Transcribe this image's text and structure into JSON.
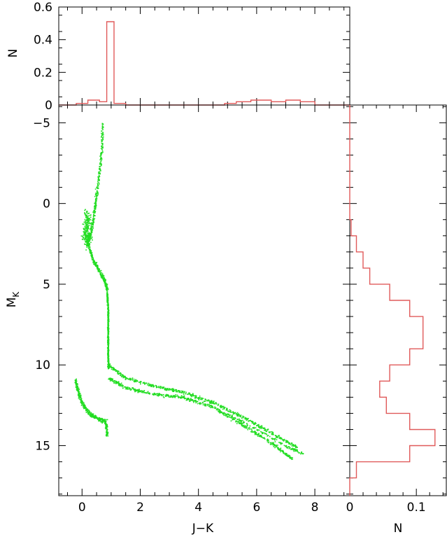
{
  "chart_data": [
    {
      "id": "top-histogram",
      "type": "histogram",
      "xlim": [
        -0.8,
        9.2
      ],
      "ylim": [
        0,
        0.6
      ],
      "ylabel": "N",
      "y_ticks": [
        0,
        0.2,
        0.4,
        0.6
      ],
      "y_tick_labels": [
        "0",
        "0.2",
        "0.4",
        "0.6"
      ],
      "line_color": "#e05a5a",
      "bins": [
        {
          "x0": -0.8,
          "x1": -0.2,
          "y": 0.0
        },
        {
          "x0": -0.2,
          "x1": 0.2,
          "y": 0.01
        },
        {
          "x0": 0.2,
          "x1": 0.6,
          "y": 0.03
        },
        {
          "x0": 0.6,
          "x1": 0.85,
          "y": 0.02
        },
        {
          "x0": 0.85,
          "x1": 1.1,
          "y": 0.51
        },
        {
          "x0": 1.1,
          "x1": 1.5,
          "y": 0.01
        },
        {
          "x0": 1.5,
          "x1": 4.9,
          "y": 0.0
        },
        {
          "x0": 4.9,
          "x1": 5.3,
          "y": 0.01
        },
        {
          "x0": 5.3,
          "x1": 5.8,
          "y": 0.02
        },
        {
          "x0": 5.8,
          "x1": 6.5,
          "y": 0.03
        },
        {
          "x0": 6.5,
          "x1": 7.0,
          "y": 0.02
        },
        {
          "x0": 7.0,
          "x1": 7.5,
          "y": 0.03
        },
        {
          "x0": 7.5,
          "x1": 8.0,
          "y": 0.02
        },
        {
          "x0": 8.0,
          "x1": 9.2,
          "y": 0.0
        }
      ]
    },
    {
      "id": "cmd-scatter",
      "type": "scatter",
      "xlabel": "J−K",
      "ylabel": "M",
      "ylabel_sub": "K",
      "xlim": [
        -0.8,
        9.2
      ],
      "ylim": [
        -6.1,
        18.1
      ],
      "y_inverted": true,
      "x_ticks": [
        0,
        2,
        4,
        6,
        8
      ],
      "x_tick_labels": [
        "0",
        "2",
        "4",
        "6",
        "8"
      ],
      "y_ticks": [
        -5,
        0,
        5,
        10,
        15
      ],
      "y_tick_labels": [
        "−5",
        "0",
        "5",
        "10",
        "15"
      ],
      "point_color": "#22dd22",
      "branches": [
        {
          "name": "giant-branch",
          "points": [
            [
              0.7,
              -5.0
            ],
            [
              0.65,
              -3.0
            ],
            [
              0.55,
              -1.5
            ],
            [
              0.45,
              0.0
            ],
            [
              0.35,
              1.2
            ],
            [
              0.25,
              2.0
            ],
            [
              0.15,
              2.5
            ]
          ]
        },
        {
          "name": "giant-clump-spread",
          "points": [
            [
              0.1,
              0.5
            ],
            [
              0.2,
              1.0
            ],
            [
              0.1,
              1.5
            ],
            [
              0.2,
              2.2
            ],
            [
              0.05,
              2.0
            ],
            [
              0.3,
              1.7
            ]
          ]
        },
        {
          "name": "subgiant-band",
          "points": [
            [
              0.2,
              2.5
            ],
            [
              0.35,
              3.4
            ],
            [
              0.55,
              4.1
            ],
            [
              0.75,
              4.7
            ],
            [
              0.85,
              5.3
            ]
          ]
        },
        {
          "name": "upper-main-sequence",
          "points": [
            [
              0.85,
              5.5
            ],
            [
              0.88,
              6.5
            ],
            [
              0.88,
              7.5
            ],
            [
              0.88,
              8.5
            ],
            [
              0.88,
              9.4
            ],
            [
              0.9,
              10.2
            ]
          ]
        },
        {
          "name": "low-mass-sequence-upper",
          "points": [
            [
              0.9,
              10.0
            ],
            [
              1.5,
              10.8
            ],
            [
              2.5,
              11.3
            ],
            [
              3.5,
              11.7
            ],
            [
              4.5,
              12.3
            ],
            [
              5.5,
              13.2
            ],
            [
              6.5,
              14.2
            ],
            [
              7.4,
              15.1
            ]
          ]
        },
        {
          "name": "low-mass-sequence-lower",
          "points": [
            [
              0.9,
              10.8
            ],
            [
              1.5,
              11.4
            ],
            [
              2.5,
              11.8
            ],
            [
              3.5,
              12.0
            ],
            [
              4.5,
              12.6
            ],
            [
              5.5,
              13.7
            ],
            [
              6.5,
              14.8
            ],
            [
              7.2,
              15.8
            ]
          ]
        },
        {
          "name": "low-mass-sequence-tail",
          "points": [
            [
              5.0,
              13.0
            ],
            [
              6.0,
              14.0
            ],
            [
              7.0,
              15.0
            ],
            [
              7.6,
              15.5
            ]
          ]
        },
        {
          "name": "white-dwarf-sequence",
          "points": [
            [
              -0.25,
              10.9
            ],
            [
              -0.15,
              11.6
            ],
            [
              0.0,
              12.4
            ],
            [
              0.25,
              13.0
            ],
            [
              0.5,
              13.3
            ],
            [
              0.8,
              13.5
            ],
            [
              0.85,
              14.3
            ]
          ]
        }
      ]
    },
    {
      "id": "right-histogram",
      "type": "histogram",
      "orientation": "horizontal",
      "xlim": [
        0,
        0.145
      ],
      "ylim": [
        -6.1,
        18.1
      ],
      "xlabel": "N",
      "x_ticks": [
        0,
        0.1
      ],
      "x_tick_labels": [
        "0",
        "0.1"
      ],
      "line_color": "#e05a5a",
      "bins": [
        {
          "y0": -6.1,
          "y1": 1.0,
          "n": 0.0
        },
        {
          "y0": 1.0,
          "y1": 2.0,
          "n": 0.002
        },
        {
          "y0": 2.0,
          "y1": 3.0,
          "n": 0.01
        },
        {
          "y0": 3.0,
          "y1": 4.0,
          "n": 0.02
        },
        {
          "y0": 4.0,
          "y1": 5.0,
          "n": 0.03
        },
        {
          "y0": 5.0,
          "y1": 6.0,
          "n": 0.06
        },
        {
          "y0": 6.0,
          "y1": 7.0,
          "n": 0.09
        },
        {
          "y0": 7.0,
          "y1": 9.0,
          "n": 0.11
        },
        {
          "y0": 9.0,
          "y1": 10.0,
          "n": 0.09
        },
        {
          "y0": 10.0,
          "y1": 11.0,
          "n": 0.06
        },
        {
          "y0": 11.0,
          "y1": 12.0,
          "n": 0.045
        },
        {
          "y0": 12.0,
          "y1": 13.0,
          "n": 0.055
        },
        {
          "y0": 13.0,
          "y1": 14.0,
          "n": 0.09
        },
        {
          "y0": 14.0,
          "y1": 15.0,
          "n": 0.128
        },
        {
          "y0": 15.0,
          "y1": 16.0,
          "n": 0.09
        },
        {
          "y0": 16.0,
          "y1": 17.0,
          "n": 0.01
        },
        {
          "y0": 17.0,
          "y1": 18.1,
          "n": 0.0
        }
      ]
    }
  ]
}
